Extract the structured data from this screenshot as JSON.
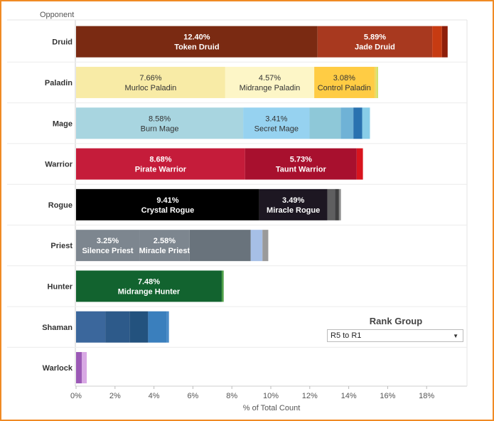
{
  "legend": {
    "title": "Rank Group",
    "selected": "R5 to R1",
    "chevron_icon": "chevron-down-icon"
  },
  "chart_data": {
    "type": "bar",
    "orientation": "horizontal",
    "stacked": true,
    "title": "",
    "ylabel": "Opponent",
    "xlabel": "% of Total Count",
    "xlim": [
      0,
      20
    ],
    "xticks": [
      "0%",
      "2%",
      "4%",
      "6%",
      "8%",
      "10%",
      "12%",
      "14%",
      "16%",
      "18%"
    ],
    "categories": [
      "Druid",
      "Paladin",
      "Mage",
      "Warrior",
      "Rogue",
      "Priest",
      "Hunter",
      "Shaman",
      "Warlock"
    ],
    "bars": [
      {
        "category": "Druid",
        "segments": [
          {
            "name": "Token Druid",
            "value": 12.4,
            "label": "12.40%",
            "color": "#7a2a12"
          },
          {
            "name": "Jade Druid",
            "value": 5.89,
            "label": "5.89%",
            "color": "#a8391f"
          },
          {
            "name": "",
            "value": 0.5,
            "label": "",
            "color": "#c73b12"
          },
          {
            "name": "",
            "value": 0.29,
            "label": "",
            "color": "#8e1e0a"
          }
        ]
      },
      {
        "category": "Paladin",
        "segments": [
          {
            "name": "Murloc Paladin",
            "value": 7.66,
            "label": "7.66%",
            "color": "#f8eba6"
          },
          {
            "name": "Midrange Paladin",
            "value": 4.57,
            "label": "4.57%",
            "color": "#fdf6c7"
          },
          {
            "name": "Control Paladin",
            "value": 3.08,
            "label": "3.08%",
            "color": "#ffcc44"
          },
          {
            "name": "",
            "value": 0.1,
            "label": "",
            "color": "#f2d860"
          },
          {
            "name": "",
            "value": 0.1,
            "label": "",
            "color": "#d4e06a"
          }
        ]
      },
      {
        "category": "Mage",
        "segments": [
          {
            "name": "Burn Mage",
            "value": 8.58,
            "label": "8.58%",
            "color": "#a8d5e0"
          },
          {
            "name": "Secret Mage",
            "value": 3.41,
            "label": "3.41%",
            "color": "#96d2f0"
          },
          {
            "name": "",
            "value": 1.6,
            "label": "",
            "color": "#8ec8d8"
          },
          {
            "name": "",
            "value": 0.65,
            "label": "",
            "color": "#6fb2d6"
          },
          {
            "name": "",
            "value": 0.45,
            "label": "",
            "color": "#2a72b0"
          },
          {
            "name": "",
            "value": 0.4,
            "label": "",
            "color": "#88cde8"
          }
        ]
      },
      {
        "category": "Warrior",
        "segments": [
          {
            "name": "Pirate Warrior",
            "value": 8.68,
            "label": "8.68%",
            "color": "#c51c3a"
          },
          {
            "name": "Taunt Warrior",
            "value": 5.73,
            "label": "5.73%",
            "color": "#a8102e"
          },
          {
            "name": "",
            "value": 0.32,
            "label": "",
            "color": "#d8141e"
          }
        ]
      },
      {
        "category": "Rogue",
        "segments": [
          {
            "name": "Crystal Rogue",
            "value": 9.41,
            "label": "9.41%",
            "color": "#000000"
          },
          {
            "name": "Miracle Rogue",
            "value": 3.49,
            "label": "3.49%",
            "color": "#1d1722"
          },
          {
            "name": "",
            "value": 0.4,
            "label": "",
            "color": "#5f5f60"
          },
          {
            "name": "",
            "value": 0.2,
            "label": "",
            "color": "#3f3f40"
          },
          {
            "name": "",
            "value": 0.1,
            "label": "",
            "color": "#8c8c8c"
          }
        ]
      },
      {
        "category": "Priest",
        "segments": [
          {
            "name": "Silence Priest",
            "value": 3.25,
            "label": "3.25%",
            "color": "#7d868f"
          },
          {
            "name": "Miracle Priest",
            "value": 2.58,
            "label": "2.58%",
            "color": "#7d868f"
          },
          {
            "name": "",
            "value": 3.14,
            "label": "",
            "color": "#69737c"
          },
          {
            "name": "",
            "value": 0.6,
            "label": "",
            "color": "#a6bfe6"
          },
          {
            "name": "",
            "value": 0.3,
            "label": "",
            "color": "#9a9a9a"
          }
        ]
      },
      {
        "category": "Hunter",
        "segments": [
          {
            "name": "Midrange Hunter",
            "value": 7.48,
            "label": "7.48%",
            "color": "#12632f"
          },
          {
            "name": "",
            "value": 0.1,
            "label": "",
            "color": "#4fa048"
          }
        ]
      },
      {
        "category": "Shaman",
        "segments": [
          {
            "name": "",
            "value": 1.5,
            "label": "",
            "color": "#3b679c"
          },
          {
            "name": "",
            "value": 1.25,
            "label": "",
            "color": "#2d5a8a"
          },
          {
            "name": "",
            "value": 0.95,
            "label": "",
            "color": "#23527e"
          },
          {
            "name": "",
            "value": 0.95,
            "label": "",
            "color": "#3a7fbd"
          },
          {
            "name": "",
            "value": 0.12,
            "label": "",
            "color": "#4a8bc7"
          }
        ]
      },
      {
        "category": "Warlock",
        "segments": [
          {
            "name": "",
            "value": 0.3,
            "label": "",
            "color": "#9b59b6"
          },
          {
            "name": "",
            "value": 0.25,
            "label": "",
            "color": "#d8a8e4"
          }
        ]
      }
    ]
  }
}
